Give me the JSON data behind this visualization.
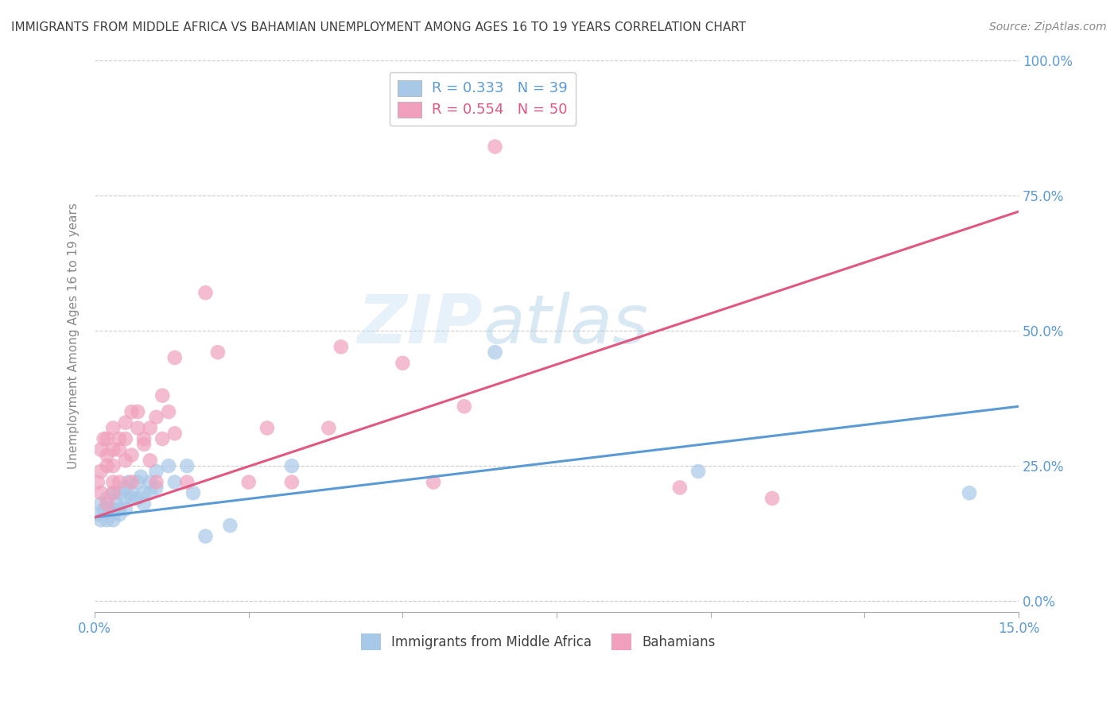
{
  "title": "IMMIGRANTS FROM MIDDLE AFRICA VS BAHAMIAN UNEMPLOYMENT AMONG AGES 16 TO 19 YEARS CORRELATION CHART",
  "source": "Source: ZipAtlas.com",
  "ylabel": "Unemployment Among Ages 16 to 19 years",
  "xlim": [
    0.0,
    0.15
  ],
  "ylim": [
    -0.02,
    1.0
  ],
  "xticks": [
    0.0,
    0.025,
    0.05,
    0.075,
    0.1,
    0.125,
    0.15
  ],
  "xtick_labels": [
    "0.0%",
    "",
    "",
    "",
    "",
    "",
    "15.0%"
  ],
  "ytick_labels_right": [
    "0.0%",
    "25.0%",
    "50.0%",
    "75.0%",
    "100.0%"
  ],
  "yticks_right": [
    0.0,
    0.25,
    0.5,
    0.75,
    1.0
  ],
  "blue_color": "#A8C8E8",
  "pink_color": "#F0A0BC",
  "blue_line_color": "#5B9BD5",
  "pink_line_color": "#E05880",
  "legend_blue_label": "R = 0.333   N = 39",
  "legend_pink_label": "R = 0.554   N = 50",
  "legend_bottom_blue": "Immigrants from Middle Africa",
  "legend_bottom_pink": "Bahamians",
  "watermark_zip": "ZIP",
  "watermark_atlas": "atlas",
  "background_color": "#FFFFFF",
  "grid_color": "#CCCCCC",
  "title_color": "#404040",
  "axis_label_color": "#5B9BD5",
  "blue_scatter_x": [
    0.0005,
    0.001,
    0.001,
    0.0015,
    0.002,
    0.002,
    0.0025,
    0.003,
    0.003,
    0.003,
    0.0035,
    0.004,
    0.004,
    0.004,
    0.005,
    0.005,
    0.005,
    0.0055,
    0.006,
    0.006,
    0.007,
    0.007,
    0.0075,
    0.008,
    0.008,
    0.009,
    0.009,
    0.01,
    0.01,
    0.012,
    0.013,
    0.015,
    0.016,
    0.018,
    0.022,
    0.032,
    0.065,
    0.098,
    0.142
  ],
  "blue_scatter_y": [
    0.16,
    0.15,
    0.18,
    0.17,
    0.15,
    0.19,
    0.17,
    0.2,
    0.17,
    0.15,
    0.18,
    0.2,
    0.17,
    0.16,
    0.21,
    0.17,
    0.19,
    0.22,
    0.2,
    0.19,
    0.22,
    0.19,
    0.23,
    0.2,
    0.18,
    0.22,
    0.2,
    0.24,
    0.21,
    0.25,
    0.22,
    0.25,
    0.2,
    0.12,
    0.14,
    0.25,
    0.46,
    0.24,
    0.2
  ],
  "pink_scatter_x": [
    0.0005,
    0.001,
    0.001,
    0.001,
    0.0015,
    0.002,
    0.002,
    0.002,
    0.002,
    0.003,
    0.003,
    0.003,
    0.003,
    0.003,
    0.004,
    0.004,
    0.004,
    0.005,
    0.005,
    0.005,
    0.006,
    0.006,
    0.006,
    0.007,
    0.007,
    0.008,
    0.008,
    0.009,
    0.009,
    0.01,
    0.01,
    0.011,
    0.011,
    0.012,
    0.013,
    0.013,
    0.015,
    0.018,
    0.02,
    0.025,
    0.028,
    0.032,
    0.038,
    0.04,
    0.05,
    0.055,
    0.06,
    0.065,
    0.095,
    0.11
  ],
  "pink_scatter_y": [
    0.22,
    0.28,
    0.2,
    0.24,
    0.3,
    0.25,
    0.18,
    0.3,
    0.27,
    0.25,
    0.22,
    0.28,
    0.32,
    0.2,
    0.3,
    0.28,
    0.22,
    0.33,
    0.3,
    0.26,
    0.35,
    0.27,
    0.22,
    0.32,
    0.35,
    0.3,
    0.29,
    0.32,
    0.26,
    0.34,
    0.22,
    0.38,
    0.3,
    0.35,
    0.45,
    0.31,
    0.22,
    0.57,
    0.46,
    0.22,
    0.32,
    0.22,
    0.32,
    0.47,
    0.44,
    0.22,
    0.36,
    0.84,
    0.21,
    0.19
  ],
  "blue_trend_x": [
    0.0,
    0.15
  ],
  "blue_trend_y": [
    0.155,
    0.36
  ],
  "pink_trend_x": [
    0.0,
    0.15
  ],
  "pink_trend_y": [
    0.155,
    0.72
  ]
}
